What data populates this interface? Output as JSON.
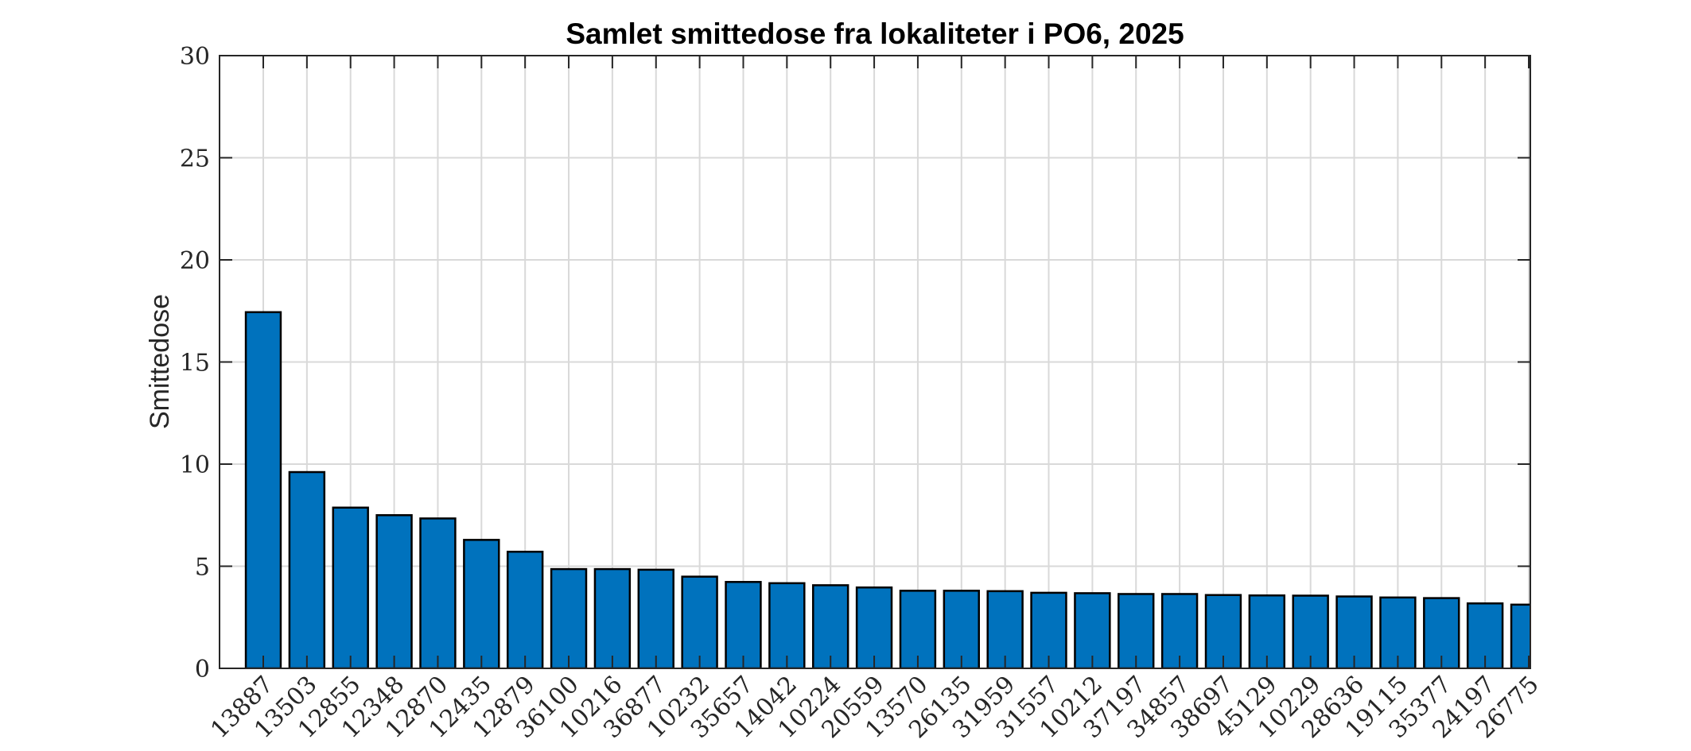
{
  "chart_data": {
    "type": "bar",
    "title": "Samlet smittedose fra lokaliteter i PO6, 2025",
    "xlabel": "",
    "ylabel": "Smittedose",
    "ylim": [
      0,
      30
    ],
    "yticks": [
      0,
      5,
      10,
      15,
      20,
      25,
      30
    ],
    "grid": true,
    "bar_color": "#0072BD",
    "categories": [
      "13887",
      "13503",
      "12855",
      "12348",
      "12870",
      "12435",
      "12879",
      "36100",
      "10216",
      "36877",
      "10232",
      "35657",
      "14042",
      "10224",
      "20559",
      "13570",
      "26135",
      "31959",
      "31557",
      "10212",
      "37197",
      "34857",
      "38697",
      "45129",
      "10229",
      "28636",
      "19115",
      "35377",
      "24197",
      "26775"
    ],
    "values": [
      17.44,
      9.61,
      7.87,
      7.5,
      7.34,
      6.29,
      5.71,
      4.86,
      4.86,
      4.83,
      4.49,
      4.23,
      4.17,
      4.07,
      3.96,
      3.8,
      3.8,
      3.78,
      3.7,
      3.68,
      3.64,
      3.64,
      3.59,
      3.57,
      3.56,
      3.52,
      3.47,
      3.44,
      3.18,
      3.12
    ]
  }
}
